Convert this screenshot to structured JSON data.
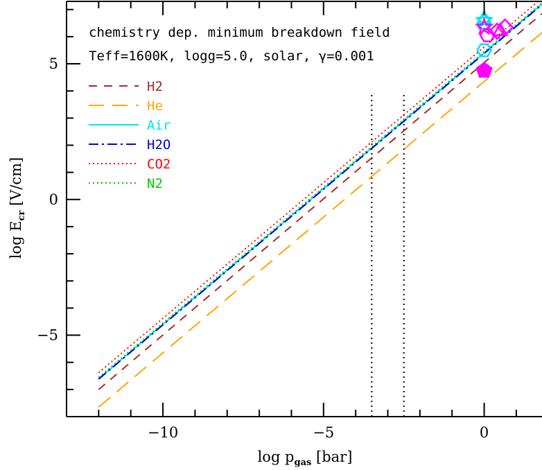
{
  "chart_data": {
    "type": "line",
    "title_lines": [
      "chemistry dep. minimum breakdown field",
      "Teff=1600K,   logg=5.0, solar, γ=0.001"
    ],
    "xlabel": {
      "prefix": "log p",
      "sub": "gas",
      "suffix": " [bar]"
    },
    "ylabel": {
      "prefix": "log E",
      "sub": "cr",
      "suffix": " [V/cm]"
    },
    "xlim": [
      -13,
      1.8
    ],
    "ylim": [
      -8,
      7.3
    ],
    "xticks": [
      -10,
      -5,
      0
    ],
    "xtick_labels": [
      "−10",
      "−5",
      "0"
    ],
    "yticks": [
      -5,
      0,
      5
    ],
    "ytick_labels": [
      "−5",
      "0",
      "5"
    ],
    "x_minor_step": 1,
    "y_minor_step": 1,
    "legend_position": "upper-left",
    "series": [
      {
        "name": "H2",
        "color": "#a52a2a",
        "dash": "12,10",
        "x": [
          -12,
          1.8
        ],
        "y": [
          -7.0,
          6.85
        ]
      },
      {
        "name": "He",
        "color": "#ffa500",
        "dash": "22,12",
        "x": [
          -12,
          1.8
        ],
        "y": [
          -7.65,
          6.15
        ]
      },
      {
        "name": "Air",
        "color": "#00e5ee",
        "dash": "",
        "x": [
          -12,
          1.8
        ],
        "y": [
          -6.6,
          7.2
        ]
      },
      {
        "name": "H2O",
        "color": "#0000dd",
        "dash": "14,5,3,5",
        "x": [
          -12,
          1.8
        ],
        "y": [
          -6.62,
          7.18
        ]
      },
      {
        "name": "CO2",
        "color": "#ff0000",
        "dash": "2,4",
        "x": [
          -12,
          1.8
        ],
        "y": [
          -6.38,
          7.42
        ]
      },
      {
        "name": "N2",
        "color": "#00cc00",
        "dash": "2,4",
        "x": [
          -12,
          1.8
        ],
        "y": [
          -6.55,
          7.25
        ]
      }
    ],
    "vertical_lines": [
      {
        "x": -3.5,
        "y_range": [
          -8,
          3.9
        ],
        "style": "dotted",
        "color": "#000000"
      },
      {
        "x": -2.5,
        "y_range": [
          -8,
          3.9
        ],
        "style": "dotted",
        "color": "#000000"
      }
    ],
    "markers": [
      {
        "shape": "star",
        "x": 0.0,
        "y": 6.6,
        "color": "#00e5ee",
        "filled": false
      },
      {
        "shape": "triangle",
        "x": 0.0,
        "y": 6.65,
        "color": "#00e5ee",
        "filled": false
      },
      {
        "shape": "square",
        "x": 0.0,
        "y": 6.5,
        "color": "#00e5ee",
        "filled": false
      },
      {
        "shape": "circle",
        "x": 0.0,
        "y": 5.5,
        "color": "#00e5ee",
        "filled": false
      },
      {
        "shape": "star",
        "x": 0.0,
        "y": 6.35,
        "color": "#ff00ff",
        "filled": false
      },
      {
        "shape": "diamond",
        "x": 0.4,
        "y": 6.2,
        "color": "#ff00ff",
        "filled": false
      },
      {
        "shape": "diamond",
        "x": 0.65,
        "y": 6.35,
        "color": "#ff00ff",
        "filled": false
      },
      {
        "shape": "circle",
        "x": 0.1,
        "y": 6.05,
        "color": "#ff00ff",
        "filled": false
      },
      {
        "shape": "triangle",
        "x": 0.5,
        "y": 6.2,
        "color": "#ff00ff",
        "filled": false
      },
      {
        "shape": "pentagon",
        "x": 0.0,
        "y": 4.75,
        "color": "#ff00ff",
        "filled": true
      }
    ]
  }
}
